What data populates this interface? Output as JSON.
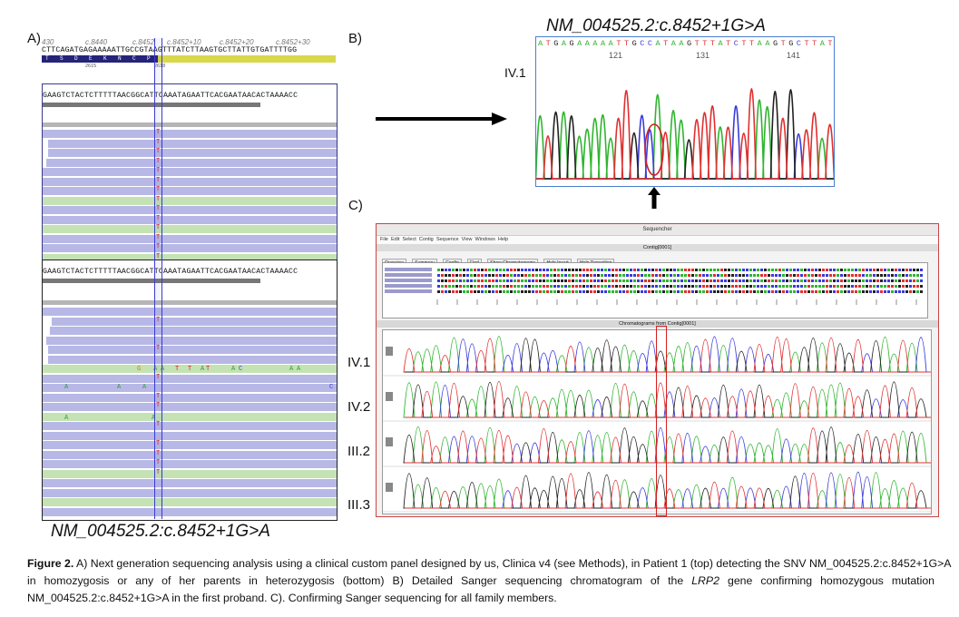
{
  "panels": {
    "a_label": "A)",
    "b_label": "B)",
    "c_label": "C)"
  },
  "panel_a": {
    "ruler_labels": [
      "430",
      "c.8440",
      "c.8452",
      "c.8452+10",
      "c.8452+20",
      "c.8452+30"
    ],
    "reference_seq": "CTTCAGATGAGAAAAATTGCCGTAAGTTTATCTTAAGTGCTTATTGTGATTTTGG",
    "amino_acids": [
      "T",
      "S",
      "D",
      "E",
      "K",
      "N",
      "C",
      "P"
    ],
    "exon_numbers": [
      "2615",
      "2618"
    ],
    "top_read_seq": "GAAGTCTACTCTTTTTAACGGCATTCAAATAGAATTCACGAATAACACTAAAACC",
    "bottom_read_seq": "GAAGTCTACTCTTTTTAACGGCATTCAAATAGAATTCACGAATAACACTAAAACC",
    "mismatch_base": "T",
    "scatter_bases": [
      "G",
      "A",
      "A",
      "T",
      "T",
      "A",
      "T",
      "A",
      "C",
      "A",
      "A",
      "A",
      "A",
      "A",
      "C",
      "A",
      "A"
    ],
    "variant_label": "NM_004525.2:c.8452+1G>A"
  },
  "panel_b": {
    "title": "NM_004525.2:c.8452+1G>A",
    "sample": "IV.1",
    "sequence": "ATGAGAAAAATTGCCATAAGTTTATCTTAAGTGCTTAT",
    "positions": [
      "121",
      "131",
      "141"
    ]
  },
  "panel_c": {
    "window_title": "Sequencher",
    "contig_title": "Contig[0001]",
    "chromatogram_title": "Chromatograms from Contig[0001]",
    "menu": [
      "File",
      "Edit",
      "Select",
      "Contig",
      "Sequence",
      "View",
      "Windows",
      "Help"
    ],
    "tools": [
      "Overview",
      "Summary",
      "Config",
      "Find",
      "Show Chromatograms",
      "Help Insert",
      "Help Reposition"
    ],
    "rows": [
      "IV.1",
      "IV.2",
      "III.2",
      "III.3"
    ]
  },
  "caption": {
    "fig_label": "Figure 2.",
    "line1_rest": "A) Next generation sequencing analysis using a clinical custom panel designed by us, Clinica v4 (see Methods), in Patient 1 (top) detecting the SNV NM_004525.2:c.8452+1G>A",
    "line2": "in homozygosis or any of her parents in heterozygosis (bottom) B) Detailed Sanger sequencing chromatogram of the",
    "gene": "LRP2",
    "line2_end": "gene confirming homozygous mutation",
    "line3": "NM_004525.2:c.8452+1G>A in the first proband. C). Confirming Sanger sequencing for all family members."
  },
  "colors": {
    "trace_a": "#2fb52f",
    "trace_c": "#3a3adc",
    "trace_g": "#222222",
    "trace_t": "#e03030",
    "read_purple": "#b7b8e6",
    "read_green": "#c4e2b4",
    "highlight_red": "#d42020"
  }
}
